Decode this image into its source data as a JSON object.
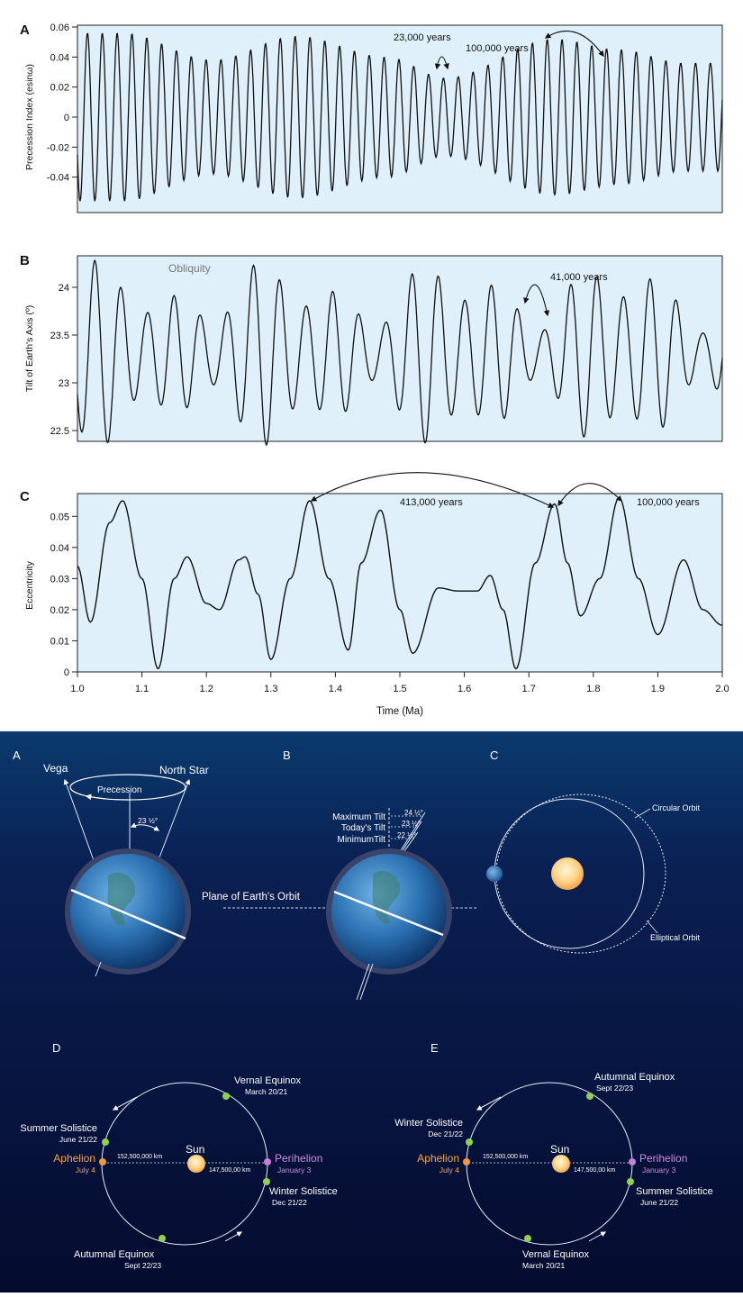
{
  "charts": {
    "xlabel": "Time (Ma)",
    "xticks": [
      "1.0",
      "1.1",
      "1.2",
      "1.3",
      "1.4",
      "1.5",
      "1.6",
      "1.7",
      "1.8",
      "1.9",
      "2.0"
    ],
    "panelA": {
      "letter": "A",
      "ylabel": "Precession Index (esinω)",
      "yticks": [
        "0.06",
        "0.04",
        "0.02",
        "0",
        "-0.02",
        "-0.04"
      ],
      "ann1": "23,000 years",
      "ann2": "100,000 years"
    },
    "panelB": {
      "letter": "B",
      "title": "Obliquity",
      "ylabel": "Tilt of Earth's Axis (º)",
      "yticks": [
        "24",
        "23.5",
        "23",
        "22.5"
      ],
      "ann1": "41,000 years"
    },
    "panelC": {
      "letter": "C",
      "ylabel": "Eccentricity",
      "yticks": [
        "0.05",
        "0.04",
        "0.03",
        "0.02",
        "0.01",
        "0"
      ],
      "ann1": "413,000 years",
      "ann2": "100,000 years"
    }
  },
  "chart_data": [
    {
      "type": "line",
      "ylabel": "Precession Index (esinω)",
      "xlabel": "",
      "xlim": [
        1.0,
        2.0
      ],
      "ylim": [
        -0.06,
        0.06
      ],
      "envelope_peaks_x": [
        1.07,
        1.21,
        1.34,
        1.48,
        1.57,
        1.74,
        1.84,
        1.94
      ],
      "envelope_peaks_y": [
        0.056,
        0.038,
        0.054,
        0.04,
        0.026,
        0.052,
        0.045,
        0.036
      ],
      "period_ka": 23
    },
    {
      "type": "line",
      "ylabel": "Tilt of Earth's Axis (º)",
      "xlabel": "",
      "xlim": [
        1.0,
        2.0
      ],
      "ylim": [
        22.2,
        24.4
      ],
      "mean": 23.3,
      "period_ka": 41
    },
    {
      "type": "line",
      "ylabel": "Eccentricity",
      "xlabel": "Time (Ma)",
      "xlim": [
        1.0,
        2.0
      ],
      "ylim": [
        0.0,
        0.058
      ],
      "x": [
        1.0,
        1.02,
        1.05,
        1.07,
        1.1,
        1.125,
        1.15,
        1.17,
        1.2,
        1.22,
        1.25,
        1.26,
        1.28,
        1.3,
        1.33,
        1.36,
        1.39,
        1.42,
        1.44,
        1.47,
        1.5,
        1.52,
        1.56,
        1.59,
        1.62,
        1.64,
        1.66,
        1.68,
        1.71,
        1.74,
        1.76,
        1.78,
        1.81,
        1.84,
        1.87,
        1.9,
        1.94,
        1.97,
        2.0
      ],
      "y": [
        0.034,
        0.016,
        0.048,
        0.055,
        0.03,
        0.001,
        0.03,
        0.037,
        0.022,
        0.02,
        0.036,
        0.037,
        0.025,
        0.004,
        0.03,
        0.055,
        0.03,
        0.007,
        0.035,
        0.052,
        0.02,
        0.006,
        0.027,
        0.026,
        0.026,
        0.031,
        0.02,
        0.001,
        0.035,
        0.054,
        0.035,
        0.018,
        0.03,
        0.056,
        0.03,
        0.012,
        0.036,
        0.02,
        0.015
      ]
    }
  ],
  "diagram": {
    "panel_a": {
      "letter": "A",
      "vega": "Vega",
      "north_star": "North Star",
      "precession": "Precession",
      "angle": "23 ½°"
    },
    "panel_b": {
      "letter": "B",
      "max_tilt": "Maximum Tilt",
      "today_tilt": "Today's Tilt",
      "min_tilt": "MinimumTilt",
      "max_val": "24 ½°",
      "today_val": "23 ½°",
      "min_val": "22 ½°"
    },
    "panel_c": {
      "letter": "C",
      "circular": "Circular Orbit",
      "elliptical": "Elliptical Orbit"
    },
    "plane_label": "Plane of Earth's Orbit",
    "panel_d": {
      "letter": "D",
      "top_name": "Vernal Equinox",
      "top_date": "March 20/21",
      "left_name": "Summer Solistice",
      "left_date": "June 21/22",
      "aphelion": "Aphelion",
      "aphelion_date": "July 4",
      "dist_left": "152,500,000 km",
      "sun": "Sun",
      "dist_right": "147,500,00 km",
      "perihelion": "Perihelion",
      "perihelion_date": "January 3",
      "right_name": "Winter Solistice",
      "right_date": "Dec 21/22",
      "bottom_name": "Autumnal Equinox",
      "bottom_date": "Sept 22/23"
    },
    "panel_e": {
      "letter": "E",
      "top_name": "Autumnal Equinox",
      "top_date": "Sept 22/23",
      "left_name": "Winter Solistice",
      "left_date": "Dec 21/22",
      "aphelion": "Aphelion",
      "aphelion_date": "July 4",
      "dist_left": "152,500,000 km",
      "sun": "Sun",
      "dist_right": "147,500,00 km",
      "perihelion": "Perihelion",
      "perihelion_date": "January 3",
      "right_name": "Summer Solistice",
      "right_date": "June 21/22",
      "bottom_name": "Vernal Equinox",
      "bottom_date": "March 20/21"
    }
  }
}
